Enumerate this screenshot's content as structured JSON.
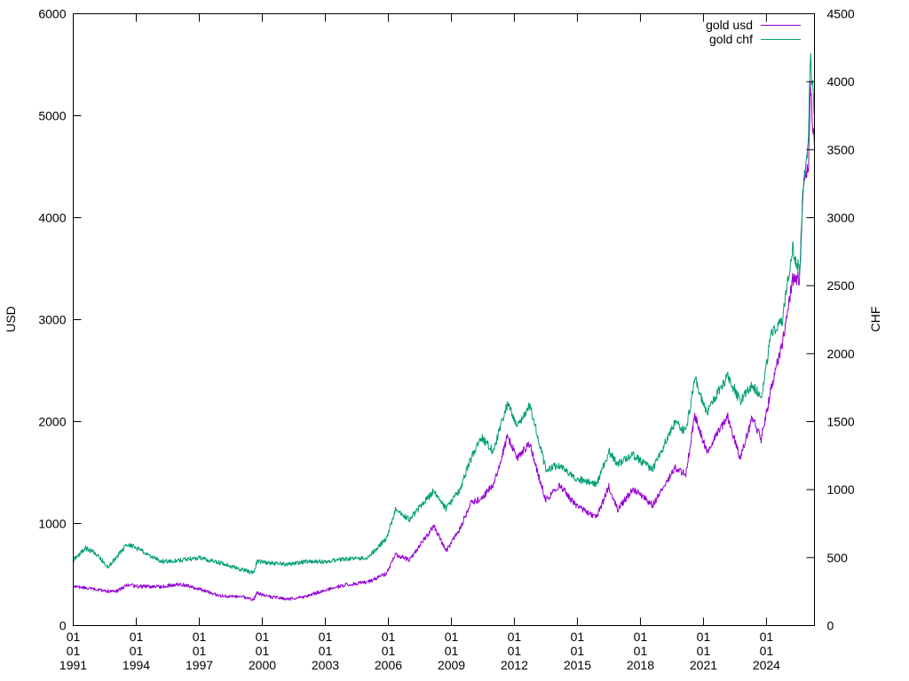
{
  "chart_data": {
    "type": "line",
    "title": "",
    "xlabel": "",
    "ylabel": "USD",
    "y2label": "CHF",
    "x_ticks": [
      [
        "01",
        "01",
        "1991"
      ],
      [
        "01",
        "01",
        "1994"
      ],
      [
        "01",
        "01",
        "1997"
      ],
      [
        "01",
        "01",
        "2000"
      ],
      [
        "01",
        "01",
        "2003"
      ],
      [
        "01",
        "01",
        "2006"
      ],
      [
        "01",
        "01",
        "2009"
      ],
      [
        "01",
        "01",
        "2012"
      ],
      [
        "01",
        "01",
        "2015"
      ],
      [
        "01",
        "01",
        "2018"
      ],
      [
        "01",
        "01",
        "2021"
      ],
      [
        "01",
        "01",
        "2024"
      ]
    ],
    "xlim": [
      "1991-01-01",
      "2026-04-15"
    ],
    "ylim": [
      0,
      6000
    ],
    "y_ticks": [
      "0",
      "1000",
      "2000",
      "3000",
      "4000",
      "5000",
      "6000"
    ],
    "y2lim": [
      0,
      4500
    ],
    "y2_ticks": [
      "0",
      "500",
      "1000",
      "1500",
      "2000",
      "2500",
      "3000",
      "3500",
      "4000",
      "4500"
    ],
    "grid": false,
    "legend_position": "top-right",
    "series": [
      {
        "name": "gold usd",
        "axis": "left",
        "color": "#9400d3",
        "points": [
          [
            "1991-01-01",
            385
          ],
          [
            "1992-01-01",
            355
          ],
          [
            "1993-01-01",
            330
          ],
          [
            "1993-08-01",
            400
          ],
          [
            "1994-01-01",
            385
          ],
          [
            "1995-01-01",
            380
          ],
          [
            "1996-02-01",
            405
          ],
          [
            "1997-01-01",
            360
          ],
          [
            "1998-01-01",
            290
          ],
          [
            "1999-01-01",
            285
          ],
          [
            "1999-08-01",
            255
          ],
          [
            "1999-10-01",
            320
          ],
          [
            "2000-06-01",
            280
          ],
          [
            "2001-04-01",
            260
          ],
          [
            "2002-01-01",
            280
          ],
          [
            "2003-01-01",
            350
          ],
          [
            "2004-01-01",
            400
          ],
          [
            "2005-01-01",
            425
          ],
          [
            "2005-12-01",
            510
          ],
          [
            "2006-05-01",
            700
          ],
          [
            "2007-01-01",
            640
          ],
          [
            "2008-03-01",
            980
          ],
          [
            "2008-10-01",
            730
          ],
          [
            "2009-06-01",
            950
          ],
          [
            "2009-12-01",
            1200
          ],
          [
            "2010-06-01",
            1240
          ],
          [
            "2011-01-01",
            1380
          ],
          [
            "2011-09-01",
            1850
          ],
          [
            "2012-03-01",
            1650
          ],
          [
            "2012-10-01",
            1780
          ],
          [
            "2013-04-01",
            1400
          ],
          [
            "2013-07-01",
            1230
          ],
          [
            "2014-03-01",
            1380
          ],
          [
            "2014-12-01",
            1180
          ],
          [
            "2015-12-01",
            1060
          ],
          [
            "2016-07-01",
            1360
          ],
          [
            "2016-12-01",
            1140
          ],
          [
            "2017-09-01",
            1340
          ],
          [
            "2018-08-01",
            1180
          ],
          [
            "2019-09-01",
            1550
          ],
          [
            "2020-03-01",
            1480
          ],
          [
            "2020-08-01",
            2060
          ],
          [
            "2021-03-01",
            1700
          ],
          [
            "2022-03-01",
            2050
          ],
          [
            "2022-10-01",
            1630
          ],
          [
            "2023-05-01",
            2050
          ],
          [
            "2023-10-01",
            1820
          ],
          [
            "2024-04-01",
            2350
          ],
          [
            "2024-10-01",
            2750
          ],
          [
            "2025-04-01",
            3400
          ],
          [
            "2025-08-01",
            3400
          ],
          [
            "2025-10-01",
            4300
          ],
          [
            "2026-01-01",
            4500
          ],
          [
            "2026-02-01",
            5300
          ],
          [
            "2026-04-15",
            4700
          ]
        ]
      },
      {
        "name": "gold chf",
        "axis": "right",
        "color": "#009e73",
        "points": [
          [
            "1991-01-01",
            480
          ],
          [
            "1991-08-01",
            570
          ],
          [
            "1992-01-01",
            540
          ],
          [
            "1992-09-01",
            430
          ],
          [
            "1993-08-01",
            600
          ],
          [
            "1994-01-01",
            570
          ],
          [
            "1995-03-01",
            470
          ],
          [
            "1996-02-01",
            480
          ],
          [
            "1997-01-01",
            500
          ],
          [
            "1998-01-01",
            460
          ],
          [
            "1999-08-01",
            385
          ],
          [
            "1999-10-01",
            470
          ],
          [
            "2000-06-01",
            460
          ],
          [
            "2001-04-01",
            450
          ],
          [
            "2002-01-01",
            470
          ],
          [
            "2003-01-01",
            470
          ],
          [
            "2004-01-01",
            490
          ],
          [
            "2005-01-01",
            500
          ],
          [
            "2005-12-01",
            640
          ],
          [
            "2006-05-01",
            850
          ],
          [
            "2007-01-01",
            780
          ],
          [
            "2008-03-01",
            990
          ],
          [
            "2008-10-01",
            860
          ],
          [
            "2009-06-01",
            1000
          ],
          [
            "2009-12-01",
            1220
          ],
          [
            "2010-06-01",
            1390
          ],
          [
            "2011-01-01",
            1280
          ],
          [
            "2011-09-01",
            1630
          ],
          [
            "2012-03-01",
            1460
          ],
          [
            "2012-10-01",
            1620
          ],
          [
            "2013-04-01",
            1300
          ],
          [
            "2013-07-01",
            1150
          ],
          [
            "2014-03-01",
            1180
          ],
          [
            "2014-12-01",
            1080
          ],
          [
            "2015-12-01",
            1040
          ],
          [
            "2016-07-01",
            1280
          ],
          [
            "2016-12-01",
            1190
          ],
          [
            "2017-09-01",
            1250
          ],
          [
            "2018-08-01",
            1150
          ],
          [
            "2019-09-01",
            1500
          ],
          [
            "2020-03-01",
            1420
          ],
          [
            "2020-08-01",
            1820
          ],
          [
            "2021-03-01",
            1570
          ],
          [
            "2022-03-01",
            1840
          ],
          [
            "2022-10-01",
            1650
          ],
          [
            "2023-05-01",
            1770
          ],
          [
            "2023-10-01",
            1680
          ],
          [
            "2024-04-01",
            2160
          ],
          [
            "2024-10-01",
            2250
          ],
          [
            "2025-04-01",
            2770
          ],
          [
            "2025-08-01",
            2600
          ],
          [
            "2025-10-01",
            3250
          ],
          [
            "2026-01-01",
            3550
          ],
          [
            "2026-02-01",
            4180
          ],
          [
            "2026-04-15",
            3750
          ]
        ]
      }
    ]
  }
}
